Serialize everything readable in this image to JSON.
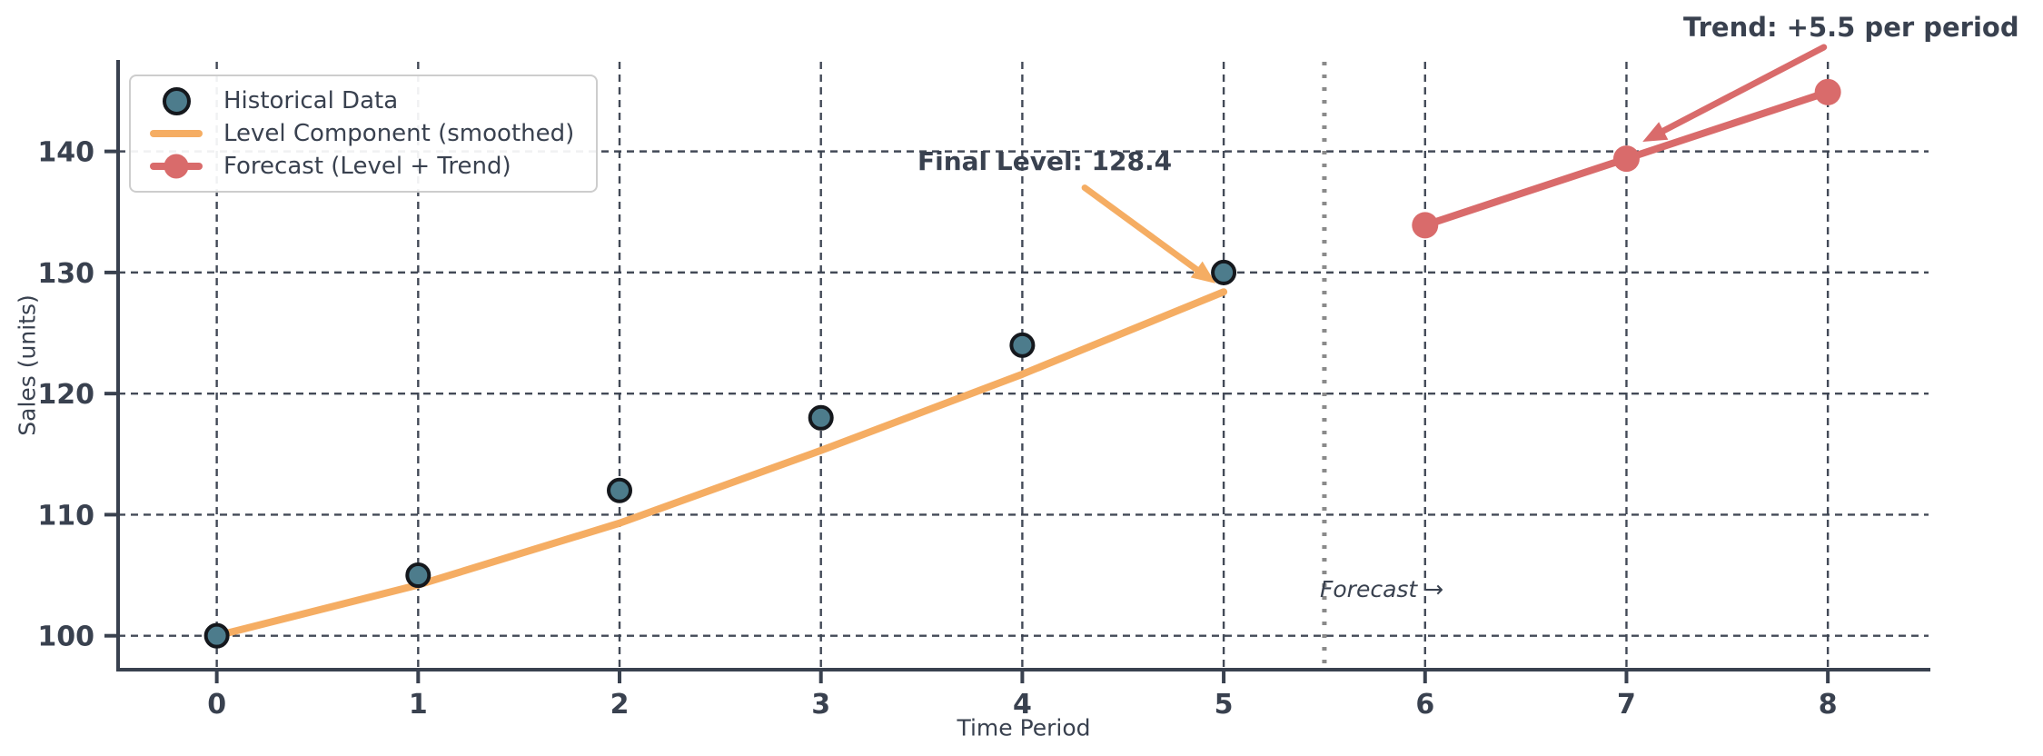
{
  "colors": {
    "background": "#FFFFFF",
    "text": "#39414F",
    "axis": "#39414F",
    "grid": "#39414F",
    "historical": "#4D7C8C",
    "historical_edge": "#15181D",
    "level": "#F5AD63",
    "forecast": "#D96B6B",
    "divider": "#8A8A8A",
    "legend_border": "#CDCDCD"
  },
  "legend": {
    "items": [
      {
        "label": "Historical Data",
        "swatch": "circle-marker"
      },
      {
        "label": "Level Component (smoothed)",
        "swatch": "orange-line"
      },
      {
        "label": "Forecast (Level + Trend)",
        "swatch": "red-line-with-marker"
      }
    ]
  },
  "annotations": {
    "final_level": "Final Level: 128.4",
    "trend": "Trend: +5.5 per period",
    "forecast_note": "Forecast →"
  },
  "chart_data": {
    "type": "line",
    "title": "",
    "xlabel": "Time Period",
    "ylabel": "Sales (units)",
    "xlim": [
      -0.49,
      8.5
    ],
    "ylim": [
      97.2,
      147.4
    ],
    "x_ticks": [
      0,
      1,
      2,
      3,
      4,
      5,
      6,
      7,
      8
    ],
    "y_ticks": [
      100,
      110,
      120,
      130,
      140
    ],
    "grid": "dashed-both",
    "legend_position": "upper-left",
    "forecast_divider_x": 5.5,
    "final_level_value": 128.4,
    "trend_per_period": 5.5,
    "series": [
      {
        "name": "Historical Data",
        "type": "scatter",
        "x": [
          0,
          1,
          2,
          3,
          4,
          5
        ],
        "y": [
          100,
          105,
          112,
          118,
          124,
          130
        ],
        "color_key": "historical"
      },
      {
        "name": "Level Component (smoothed)",
        "type": "line",
        "x": [
          0,
          1,
          2,
          3,
          4,
          5
        ],
        "y": [
          100,
          104.2,
          109.3,
          115.3,
          121.6,
          128.4
        ],
        "color_key": "level"
      },
      {
        "name": "Forecast (Level + Trend)",
        "type": "line-marker",
        "x": [
          6,
          7,
          8
        ],
        "y": [
          133.9,
          139.4,
          144.9
        ],
        "color_key": "forecast"
      }
    ],
    "arrows": [
      {
        "name": "final-level-arrow",
        "color_key": "level",
        "from": [
          4.31,
          137.0
        ],
        "to": [
          4.96,
          129.1
        ]
      },
      {
        "name": "trend-arrow",
        "color_key": "forecast",
        "from": [
          7.98,
          148.6
        ],
        "to": [
          7.08,
          140.8
        ]
      }
    ]
  }
}
